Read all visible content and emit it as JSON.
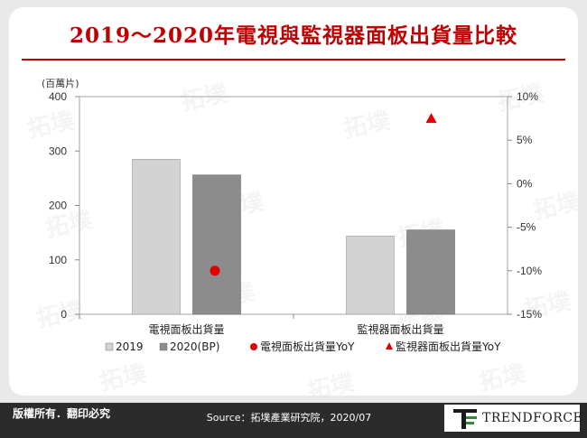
{
  "title": "2019～2020年電視與監視器面板出貨量比較",
  "footer": {
    "copyright": "版權所有．翻印必究",
    "source": "Source：拓墣產業研究院，2020/07",
    "brand": "TRENDFORCE"
  },
  "watermark": "拓墣",
  "colors": {
    "bar_2019": "#d3d3d3",
    "bar_2020": "#8c8c8c",
    "tv_yoy": "#e00000",
    "monitor_yoy": "#e00000",
    "title": "#c00000"
  },
  "chart_data": {
    "type": "bar",
    "title": "2019～2020年電視與監視器面板出貨量比較",
    "categories": [
      "電視面板出貨量",
      "監視器面板出貨量"
    ],
    "series": [
      {
        "name": "2019",
        "type": "bar",
        "axis": "left",
        "values": [
          285,
          144
        ]
      },
      {
        "name": "2020(BP)",
        "type": "bar",
        "axis": "left",
        "values": [
          256,
          155
        ]
      }
    ],
    "yoy_points": [
      {
        "name": "電視面板出貨量YoY",
        "marker": "circle",
        "category": "電視面板出貨量",
        "value": -10
      },
      {
        "name": "監視器面板出貨量YoY",
        "marker": "triangle",
        "category": "監視器面板出貨量",
        "value": 7.5
      }
    ],
    "y_left": {
      "label": "(百萬片)",
      "ylim": [
        0,
        400
      ],
      "ticks": [
        "0",
        "100",
        "200",
        "300",
        "400"
      ]
    },
    "y_right": {
      "ylim": [
        -15,
        10
      ],
      "ticks": [
        "-15%",
        "-10%",
        "-5%",
        "0%",
        "5%",
        "10%"
      ]
    },
    "grid": false,
    "legend_position": "bottom"
  }
}
